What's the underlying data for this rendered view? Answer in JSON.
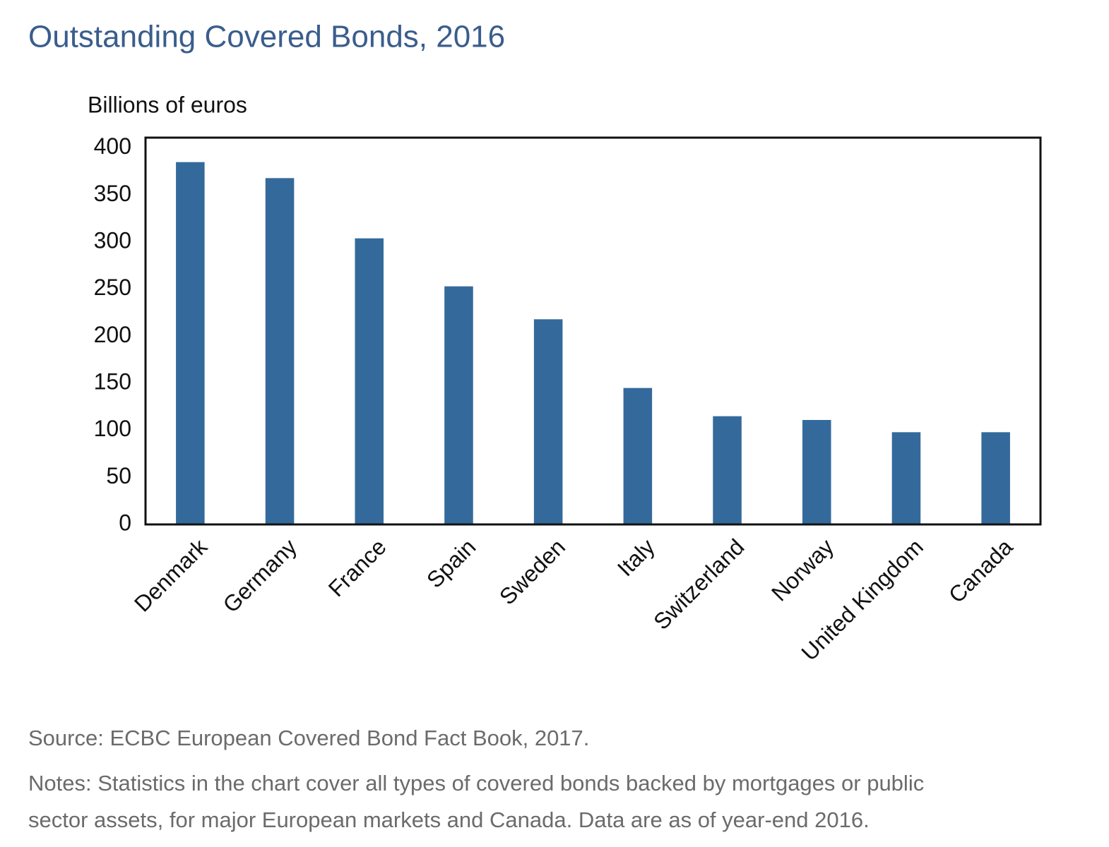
{
  "chart_data": {
    "type": "bar",
    "title": "Outstanding Covered Bonds, 2016",
    "y_label": "Billions of euros",
    "categories": [
      "Denmark",
      "Germany",
      "France",
      "Spain",
      "Sweden",
      "Italy",
      "Switzerland",
      "Norway",
      "United Kingdom",
      "Canada"
    ],
    "values": [
      385,
      368,
      304,
      253,
      218,
      145,
      115,
      111,
      98,
      98
    ],
    "color": "#346a9b",
    "ylim": [
      0,
      411
    ],
    "yticks": [
      0,
      50,
      100,
      150,
      200,
      250,
      300,
      350,
      400
    ],
    "grid": false,
    "source": "Source: ECBC European Covered Bond Fact Book, 2017.",
    "notes": [
      "Notes: Statistics in the chart cover all types of covered bonds backed by mortgages or public",
      "sector assets, for major European markets and Canada. Data are as of year-end 2016."
    ]
  }
}
